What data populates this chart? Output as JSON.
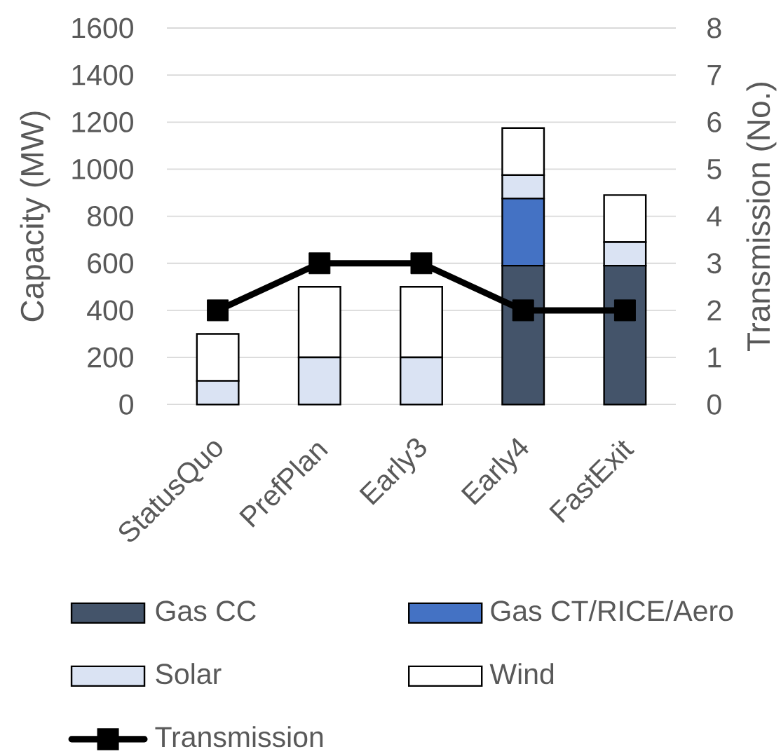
{
  "chart_data": {
    "type": "bar",
    "stacked": true,
    "categories": [
      "StatusQuo",
      "PrefPlan",
      "Early3",
      "Early4",
      "FastExit"
    ],
    "series": [
      {
        "name": "Gas CC",
        "color": "#44546a",
        "values": [
          0,
          0,
          0,
          590,
          590
        ]
      },
      {
        "name": "Gas CT/RICE/Aero",
        "color": "#4472c4",
        "values": [
          0,
          0,
          0,
          285,
          0
        ]
      },
      {
        "name": "Solar",
        "color": "#dae3f3",
        "values": [
          100,
          200,
          200,
          100,
          100
        ]
      },
      {
        "name": "Wind",
        "color": "#ffffff",
        "values": [
          200,
          300,
          300,
          200,
          200
        ]
      },
      {
        "name": "Transmission",
        "type": "line",
        "axis": "y2",
        "color": "#000000",
        "marker": "square",
        "values": [
          2,
          3,
          3,
          2,
          2
        ]
      }
    ],
    "ylabel": "Capacity (MW)",
    "y2label": "Transmission (No.)",
    "ylim": [
      0,
      1600
    ],
    "yticks": [
      0,
      200,
      400,
      600,
      800,
      1000,
      1200,
      1400,
      1600
    ],
    "y2lim": [
      0,
      8
    ],
    "y2ticks": [
      0,
      1,
      2,
      3,
      4,
      5,
      6,
      7,
      8
    ],
    "grid": "y",
    "legend": "bottom"
  }
}
